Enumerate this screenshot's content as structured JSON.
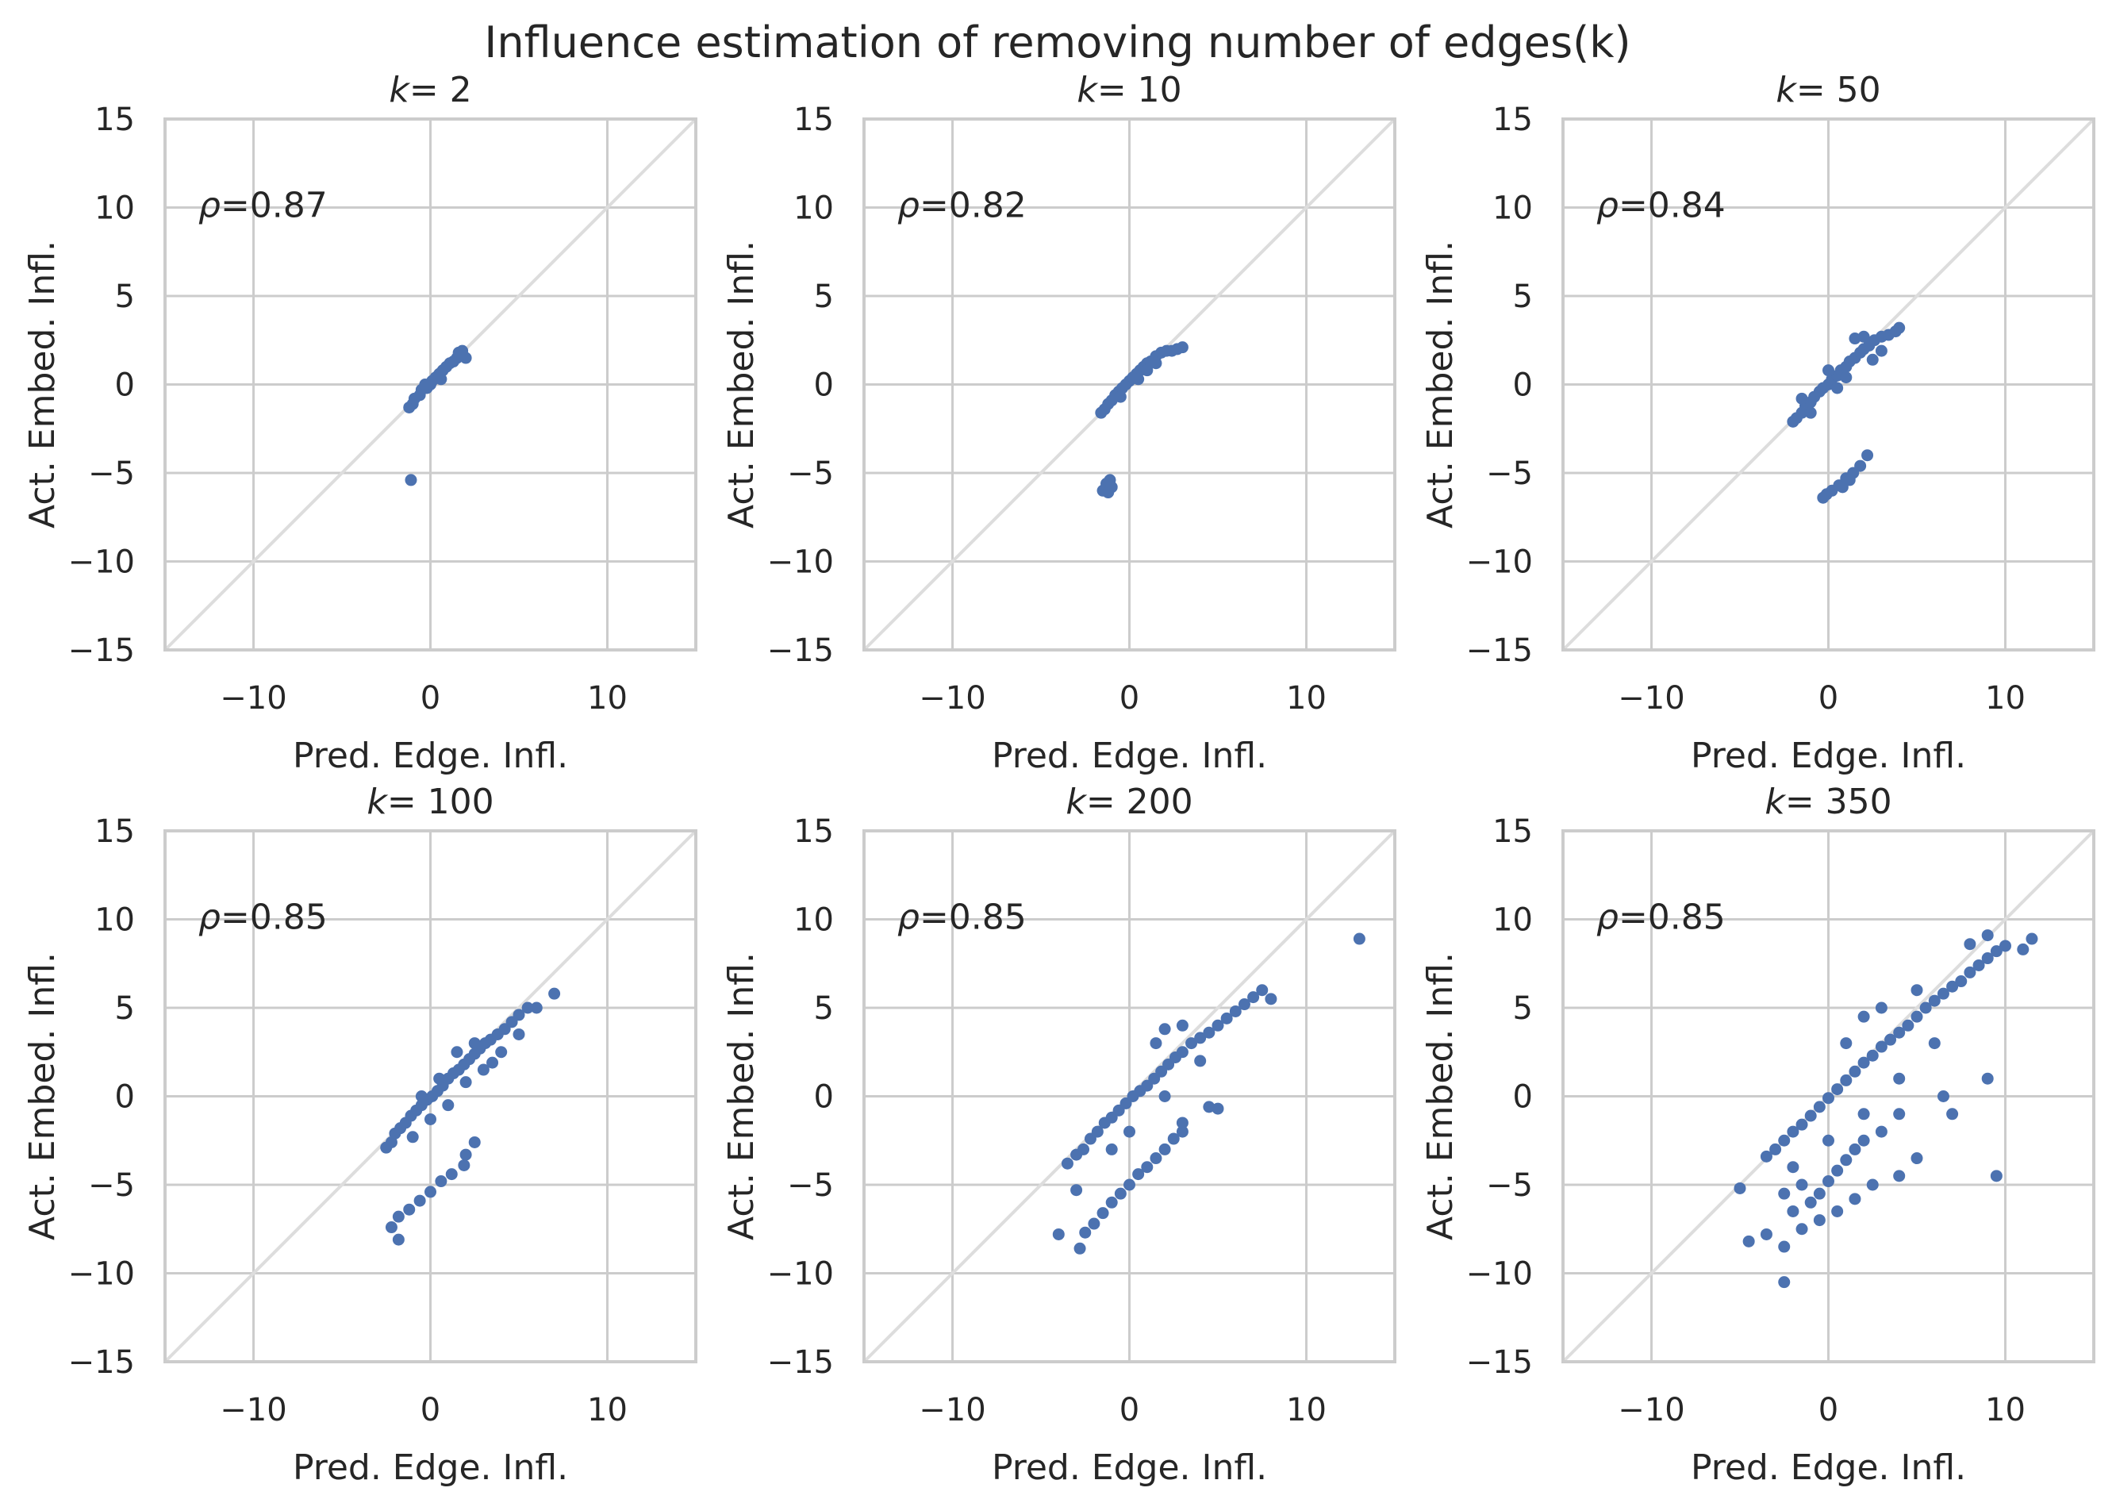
{
  "figure": {
    "title": "Influence estimation of removing number of edges(k)",
    "colors": {
      "points": "#4c72b0",
      "grid": "#cccccc",
      "frame": "#cccccc",
      "diagonal": "#dddddd",
      "text": "#262626"
    }
  },
  "chart_data": [
    {
      "type": "scatter",
      "title_prefix": "k",
      "title_value": "= 2",
      "xlabel": "Pred. Edge. Infl.",
      "ylabel": "Act. Embed. Infl.",
      "xlim": [
        -15,
        15
      ],
      "ylim": [
        -15,
        15
      ],
      "xticks": [
        "-10",
        "0",
        "10"
      ],
      "yticks": [
        "15",
        "10",
        "5",
        "0",
        "-5",
        "-10",
        "-15"
      ],
      "rho_symbol": "ρ",
      "rho_value": "=0.87",
      "points": [
        [
          -1.2,
          -1.3
        ],
        [
          -1.0,
          -1.1
        ],
        [
          -0.9,
          -0.8
        ],
        [
          -0.6,
          -0.6
        ],
        [
          -0.5,
          -0.3
        ],
        [
          -0.2,
          -0.2
        ],
        [
          0.0,
          0.0
        ],
        [
          0.1,
          0.2
        ],
        [
          0.3,
          0.4
        ],
        [
          0.5,
          0.6
        ],
        [
          0.7,
          0.8
        ],
        [
          0.9,
          1.0
        ],
        [
          1.1,
          1.2
        ],
        [
          1.3,
          1.3
        ],
        [
          1.5,
          1.5
        ],
        [
          1.6,
          1.8
        ],
        [
          1.8,
          1.9
        ],
        [
          2.0,
          1.5
        ],
        [
          -0.3,
          0.0
        ],
        [
          0.6,
          0.3
        ],
        [
          -1.1,
          -5.4
        ]
      ]
    },
    {
      "type": "scatter",
      "title_prefix": "k",
      "title_value": "= 10",
      "xlabel": "Pred. Edge. Infl.",
      "ylabel": "Act. Embed. Infl.",
      "xlim": [
        -15,
        15
      ],
      "ylim": [
        -15,
        15
      ],
      "xticks": [
        "-10",
        "0",
        "10"
      ],
      "yticks": [
        "15",
        "10",
        "5",
        "0",
        "-5",
        "-10",
        "-15"
      ],
      "rho_symbol": "ρ",
      "rho_value": "=0.82",
      "points": [
        [
          -1.6,
          -1.6
        ],
        [
          -1.4,
          -1.4
        ],
        [
          -1.2,
          -1.1
        ],
        [
          -1.0,
          -0.9
        ],
        [
          -0.8,
          -0.6
        ],
        [
          -0.6,
          -0.4
        ],
        [
          -0.4,
          -0.2
        ],
        [
          -0.2,
          0.0
        ],
        [
          0.0,
          0.2
        ],
        [
          0.2,
          0.4
        ],
        [
          0.4,
          0.6
        ],
        [
          0.6,
          0.8
        ],
        [
          0.8,
          1.0
        ],
        [
          1.0,
          1.2
        ],
        [
          1.2,
          1.3
        ],
        [
          1.5,
          1.6
        ],
        [
          1.8,
          1.8
        ],
        [
          2.1,
          1.9
        ],
        [
          2.4,
          1.9
        ],
        [
          2.7,
          2.0
        ],
        [
          3.0,
          2.1
        ],
        [
          0.5,
          0.3
        ],
        [
          1.0,
          0.8
        ],
        [
          -0.5,
          -0.7
        ],
        [
          1.5,
          1.2
        ],
        [
          -1.3,
          -5.6
        ],
        [
          -1.1,
          -5.4
        ],
        [
          -1.5,
          -6.0
        ],
        [
          -1.0,
          -5.8
        ],
        [
          -1.2,
          -6.1
        ]
      ]
    },
    {
      "type": "scatter",
      "title_prefix": "k",
      "title_value": "= 50",
      "xlabel": "Pred. Edge. Infl.",
      "ylabel": "Act. Embed. Infl.",
      "xlim": [
        -15,
        15
      ],
      "ylim": [
        -15,
        15
      ],
      "xticks": [
        "-10",
        "0",
        "10"
      ],
      "yticks": [
        "15",
        "10",
        "5",
        "0",
        "-5",
        "-10",
        "-15"
      ],
      "rho_symbol": "ρ",
      "rho_value": "=0.84",
      "points": [
        [
          -2.0,
          -2.1
        ],
        [
          -1.8,
          -1.9
        ],
        [
          -1.5,
          -1.6
        ],
        [
          -1.3,
          -1.2
        ],
        [
          -1.0,
          -1.0
        ],
        [
          -0.8,
          -0.7
        ],
        [
          -0.5,
          -0.4
        ],
        [
          -0.3,
          -0.2
        ],
        [
          0.0,
          0.0
        ],
        [
          0.2,
          0.3
        ],
        [
          0.5,
          0.5
        ],
        [
          0.7,
          0.8
        ],
        [
          1.0,
          1.0
        ],
        [
          1.2,
          1.3
        ],
        [
          1.5,
          1.5
        ],
        [
          1.8,
          1.8
        ],
        [
          2.0,
          2.0
        ],
        [
          2.3,
          2.2
        ],
        [
          2.6,
          2.5
        ],
        [
          3.0,
          2.7
        ],
        [
          3.4,
          2.8
        ],
        [
          3.8,
          3.0
        ],
        [
          4.0,
          3.2
        ],
        [
          1.5,
          2.6
        ],
        [
          2.0,
          2.7
        ],
        [
          -1.0,
          -1.6
        ],
        [
          0.5,
          -0.2
        ],
        [
          1.0,
          0.4
        ],
        [
          2.5,
          1.4
        ],
        [
          3.0,
          1.9
        ],
        [
          -1.5,
          -0.8
        ],
        [
          0.0,
          0.8
        ],
        [
          -0.3,
          -6.4
        ],
        [
          0.2,
          -6.0
        ],
        [
          0.6,
          -5.7
        ],
        [
          1.0,
          -5.3
        ],
        [
          1.4,
          -5.0
        ],
        [
          1.8,
          -4.6
        ],
        [
          2.2,
          -4.0
        ],
        [
          1.2,
          -5.4
        ],
        [
          -0.1,
          -6.2
        ],
        [
          0.8,
          -5.8
        ]
      ]
    },
    {
      "type": "scatter",
      "title_prefix": "k",
      "title_value": "= 100",
      "xlabel": "Pred. Edge. Infl.",
      "ylabel": "Act. Embed. Infl.",
      "xlim": [
        -15,
        15
      ],
      "ylim": [
        -15,
        15
      ],
      "xticks": [
        "-10",
        "0",
        "10"
      ],
      "yticks": [
        "15",
        "10",
        "5",
        "0",
        "-5",
        "-10",
        "-15"
      ],
      "rho_symbol": "ρ",
      "rho_value": "=0.85",
      "points": [
        [
          -2.5,
          -2.9
        ],
        [
          -2.2,
          -2.6
        ],
        [
          -2.0,
          -2.1
        ],
        [
          -1.7,
          -1.8
        ],
        [
          -1.4,
          -1.5
        ],
        [
          -1.1,
          -1.1
        ],
        [
          -0.8,
          -0.8
        ],
        [
          -0.5,
          -0.5
        ],
        [
          -0.2,
          -0.2
        ],
        [
          0.1,
          0.0
        ],
        [
          0.4,
          0.3
        ],
        [
          0.7,
          0.6
        ],
        [
          1.0,
          1.0
        ],
        [
          1.3,
          1.3
        ],
        [
          1.6,
          1.5
        ],
        [
          1.9,
          1.8
        ],
        [
          2.2,
          2.1
        ],
        [
          2.5,
          2.4
        ],
        [
          2.8,
          2.7
        ],
        [
          3.1,
          3.0
        ],
        [
          3.4,
          3.2
        ],
        [
          3.8,
          3.5
        ],
        [
          4.2,
          3.8
        ],
        [
          4.6,
          4.2
        ],
        [
          5.0,
          4.6
        ],
        [
          5.5,
          5.0
        ],
        [
          6.0,
          5.0
        ],
        [
          7.0,
          5.8
        ],
        [
          4.0,
          2.5
        ],
        [
          3.0,
          1.5
        ],
        [
          2.0,
          0.8
        ],
        [
          1.0,
          -0.5
        ],
        [
          0.0,
          -1.3
        ],
        [
          -1.0,
          -2.3
        ],
        [
          5.0,
          3.5
        ],
        [
          1.5,
          2.5
        ],
        [
          2.5,
          3.0
        ],
        [
          0.5,
          1.0
        ],
        [
          -0.5,
          0.0
        ],
        [
          3.5,
          1.9
        ],
        [
          -2.2,
          -7.4
        ],
        [
          -1.8,
          -6.8
        ],
        [
          -1.2,
          -6.4
        ],
        [
          -0.6,
          -5.9
        ],
        [
          0.0,
          -5.4
        ],
        [
          0.6,
          -4.8
        ],
        [
          1.2,
          -4.4
        ],
        [
          2.0,
          -3.3
        ],
        [
          2.5,
          -2.6
        ],
        [
          -1.8,
          -8.1
        ],
        [
          1.9,
          -3.9
        ]
      ]
    },
    {
      "type": "scatter",
      "title_prefix": "k",
      "title_value": "= 200",
      "xlabel": "Pred. Edge. Infl.",
      "ylabel": "Act. Embed. Infl.",
      "xlim": [
        -15,
        15
      ],
      "ylim": [
        -15,
        15
      ],
      "xticks": [
        "-10",
        "0",
        "10"
      ],
      "yticks": [
        "15",
        "10",
        "5",
        "0",
        "-5",
        "-10",
        "-15"
      ],
      "rho_symbol": "ρ",
      "rho_value": "=0.85",
      "points": [
        [
          -3.5,
          -3.8
        ],
        [
          -3.0,
          -3.3
        ],
        [
          -2.6,
          -3.0
        ],
        [
          -2.2,
          -2.4
        ],
        [
          -1.8,
          -2.0
        ],
        [
          -1.4,
          -1.5
        ],
        [
          -1.0,
          -1.2
        ],
        [
          -0.6,
          -0.8
        ],
        [
          -0.2,
          -0.4
        ],
        [
          0.2,
          0.0
        ],
        [
          0.6,
          0.3
        ],
        [
          1.0,
          0.6
        ],
        [
          1.4,
          1.0
        ],
        [
          1.8,
          1.4
        ],
        [
          2.2,
          1.8
        ],
        [
          2.6,
          2.2
        ],
        [
          3.0,
          2.5
        ],
        [
          3.5,
          3.0
        ],
        [
          4.0,
          3.3
        ],
        [
          4.5,
          3.6
        ],
        [
          5.0,
          4.0
        ],
        [
          5.5,
          4.4
        ],
        [
          6.0,
          4.8
        ],
        [
          6.5,
          5.2
        ],
        [
          7.0,
          5.6
        ],
        [
          7.5,
          6.0
        ],
        [
          8.0,
          5.5
        ],
        [
          1.5,
          3.0
        ],
        [
          2.0,
          3.8
        ],
        [
          3.0,
          4.0
        ],
        [
          4.0,
          2.0
        ],
        [
          2.0,
          0.0
        ],
        [
          0.0,
          -2.0
        ],
        [
          -1.0,
          -3.0
        ],
        [
          4.5,
          -0.6
        ],
        [
          5.0,
          -0.7
        ],
        [
          3.0,
          -1.5
        ],
        [
          -4.0,
          -7.8
        ],
        [
          -3.0,
          -5.3
        ],
        [
          -2.5,
          -7.7
        ],
        [
          -2.0,
          -7.2
        ],
        [
          -1.5,
          -6.6
        ],
        [
          -1.0,
          -6.0
        ],
        [
          -0.5,
          -5.5
        ],
        [
          0.0,
          -5.0
        ],
        [
          0.5,
          -4.4
        ],
        [
          1.0,
          -4.0
        ],
        [
          1.5,
          -3.5
        ],
        [
          2.0,
          -3.0
        ],
        [
          2.5,
          -2.4
        ],
        [
          3.0,
          -2.0
        ],
        [
          -2.8,
          -8.6
        ],
        [
          13.0,
          8.9
        ]
      ]
    },
    {
      "type": "scatter",
      "title_prefix": "k",
      "title_value": "= 350",
      "xlabel": "Pred. Edge. Infl.",
      "ylabel": "Act. Embed. Infl.",
      "xlim": [
        -15,
        15
      ],
      "ylim": [
        -15,
        15
      ],
      "xticks": [
        "-10",
        "0",
        "10"
      ],
      "yticks": [
        "15",
        "10",
        "5",
        "0",
        "-5",
        "-10",
        "-15"
      ],
      "rho_symbol": "ρ",
      "rho_value": "=0.85",
      "points": [
        [
          -3.5,
          -3.4
        ],
        [
          -3.0,
          -3.0
        ],
        [
          -2.5,
          -2.5
        ],
        [
          -2.0,
          -2.0
        ],
        [
          -1.5,
          -1.6
        ],
        [
          -1.0,
          -1.1
        ],
        [
          -0.5,
          -0.6
        ],
        [
          0.0,
          -0.1
        ],
        [
          0.5,
          0.4
        ],
        [
          1.0,
          0.9
        ],
        [
          1.5,
          1.4
        ],
        [
          2.0,
          1.9
        ],
        [
          2.5,
          2.3
        ],
        [
          3.0,
          2.8
        ],
        [
          3.5,
          3.2
        ],
        [
          4.0,
          3.6
        ],
        [
          4.5,
          4.0
        ],
        [
          5.0,
          4.5
        ],
        [
          5.5,
          5.0
        ],
        [
          6.0,
          5.4
        ],
        [
          6.5,
          5.8
        ],
        [
          7.0,
          6.2
        ],
        [
          7.5,
          6.5
        ],
        [
          8.0,
          7.0
        ],
        [
          8.5,
          7.4
        ],
        [
          9.0,
          7.8
        ],
        [
          9.5,
          8.2
        ],
        [
          10.0,
          8.5
        ],
        [
          11.0,
          8.3
        ],
        [
          11.5,
          8.9
        ],
        [
          9.0,
          9.1
        ],
        [
          8.0,
          8.6
        ],
        [
          2.0,
          4.5
        ],
        [
          1.0,
          3.0
        ],
        [
          3.0,
          5.0
        ],
        [
          5.0,
          6.0
        ],
        [
          6.0,
          3.0
        ],
        [
          4.0,
          1.0
        ],
        [
          2.0,
          -1.0
        ],
        [
          0.0,
          -2.5
        ],
        [
          -2.0,
          -4.0
        ],
        [
          6.5,
          0.0
        ],
        [
          7.0,
          -1.0
        ],
        [
          9.0,
          1.0
        ],
        [
          9.5,
          -4.5
        ],
        [
          -2.5,
          -5.5
        ],
        [
          -2.0,
          -6.5
        ],
        [
          -1.5,
          -5.0
        ],
        [
          -1.0,
          -6.0
        ],
        [
          -0.5,
          -5.5
        ],
        [
          0.0,
          -4.8
        ],
        [
          0.5,
          -4.2
        ],
        [
          1.0,
          -3.6
        ],
        [
          1.5,
          -3.0
        ],
        [
          2.0,
          -2.5
        ],
        [
          3.0,
          -2.0
        ],
        [
          4.0,
          -1.0
        ],
        [
          5.0,
          -3.5
        ],
        [
          -5.0,
          -5.2
        ],
        [
          -4.5,
          -8.2
        ],
        [
          -3.5,
          -7.8
        ],
        [
          -2.5,
          -8.5
        ],
        [
          -2.5,
          -10.5
        ],
        [
          -1.5,
          -7.5
        ],
        [
          -0.5,
          -7.0
        ],
        [
          0.5,
          -6.5
        ],
        [
          1.5,
          -5.8
        ],
        [
          2.5,
          -5.0
        ],
        [
          4.0,
          -4.5
        ]
      ]
    }
  ]
}
